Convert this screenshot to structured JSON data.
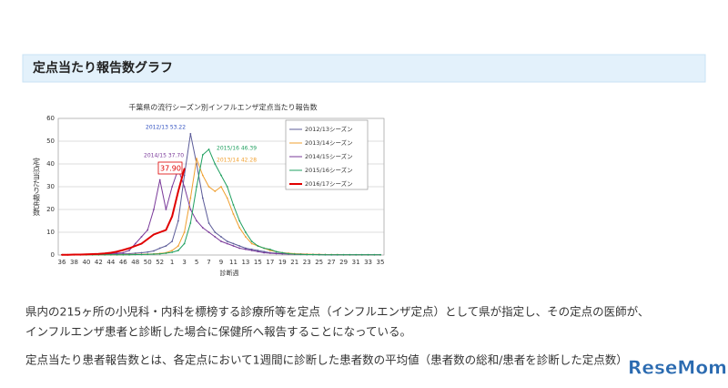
{
  "heading": "定点当たり報告数グラフ",
  "paragraphs": [
    "県内の215ヶ所の小児科・内科を標榜する診療所等を定点（インフルエンザ定点）として県が指定し、その定点の医師が、",
    "インフルエンザ患者と診断した場合に保健所へ報告することになっている。",
    "定点当たり患者報告数とは、各定点において1週間に診断した患者数の平均値（患者数の総和/患者を診断した定点数）"
  ],
  "logo": "ReseMom",
  "chart_data": {
    "type": "line",
    "title": "千葉県の流行シーズン別インフルエンザ定点当たり報告数",
    "x_label": "診断週",
    "y_label": "定点当たり報告数",
    "categories": [
      36,
      null,
      38,
      null,
      40,
      null,
      42,
      null,
      44,
      null,
      46,
      null,
      48,
      null,
      50,
      null,
      52,
      null,
      1,
      null,
      3,
      null,
      5,
      null,
      7,
      null,
      9,
      null,
      11,
      null,
      13,
      null,
      15,
      null,
      17,
      null,
      19,
      null,
      21,
      null,
      23,
      null,
      25,
      null,
      27,
      null,
      29,
      null,
      31,
      null,
      33,
      null,
      35
    ],
    "ylim": [
      0,
      60
    ],
    "yticks": [
      0,
      10,
      20,
      30,
      40,
      50,
      60
    ],
    "grid": true,
    "legend": "upper right",
    "series": [
      {
        "name": "2012/13シーズン",
        "color": "#5c5c99",
        "values": [
          0.1,
          0.1,
          0.1,
          0.1,
          0.2,
          0.2,
          0.2,
          0.3,
          0.3,
          0.4,
          0.5,
          0.6,
          0.8,
          1,
          1.3,
          1.8,
          3,
          4,
          6,
          15,
          35,
          53.22,
          40,
          25,
          14,
          10,
          8,
          6,
          5,
          4,
          3,
          2.5,
          2,
          1.5,
          1,
          0.8,
          0.6,
          0.5,
          0.4,
          0.3,
          0.3,
          0.2,
          0.2,
          0.2,
          0.1,
          0.1,
          0.1,
          0.1,
          0.1,
          0.1,
          0.1,
          0.1,
          0.1
        ]
      },
      {
        "name": "2013/14シーズン",
        "color": "#f0a030",
        "values": [
          0.1,
          0.1,
          0.1,
          0.1,
          0.1,
          0.1,
          0.1,
          0.1,
          0.1,
          0.1,
          0.2,
          0.2,
          0.3,
          0.3,
          0.4,
          0.5,
          0.7,
          1,
          2,
          4,
          10,
          25,
          42.28,
          35,
          30,
          28,
          30,
          25,
          18,
          12,
          8,
          5,
          4,
          3,
          2,
          1.5,
          1,
          0.8,
          0.6,
          0.5,
          0.4,
          0.3,
          0.3,
          0.2,
          0.2,
          0.2,
          0.1,
          0.1,
          0.1,
          0.1,
          0.1,
          0.1,
          0.1
        ]
      },
      {
        "name": "2014/15シーズン",
        "color": "#7a3a9a",
        "values": [
          0.1,
          0.1,
          0.1,
          0.1,
          0.2,
          0.2,
          0.3,
          0.4,
          0.6,
          0.8,
          1,
          2,
          5,
          8,
          11,
          20,
          33,
          20,
          30,
          37.7,
          30,
          20,
          15,
          12,
          10,
          8,
          6,
          5,
          4,
          3,
          2.5,
          2,
          1.5,
          1,
          0.8,
          0.6,
          0.5,
          0.4,
          0.3,
          0.3,
          0.2,
          0.2,
          0.2,
          0.1,
          0.1,
          0.1,
          0.1,
          0.1,
          0.1,
          0.1,
          0.1,
          0.1,
          0.1
        ]
      },
      {
        "name": "2015/16シーズン",
        "color": "#20a060",
        "values": [
          0.1,
          0.1,
          0.1,
          0.1,
          0.1,
          0.1,
          0.1,
          0.1,
          0.1,
          0.1,
          0.1,
          0.1,
          0.2,
          0.2,
          0.3,
          0.4,
          0.5,
          0.8,
          1.2,
          2,
          5,
          14,
          30,
          44,
          46.39,
          40,
          35,
          30,
          22,
          15,
          10,
          6,
          4,
          3,
          2.5,
          1.5,
          1,
          0.6,
          0.4,
          0.3,
          0.2,
          0.2,
          0.1,
          0.1,
          0.1,
          0.1,
          0.1,
          0.1,
          0.1,
          0.1,
          0.1,
          0.1,
          0.1
        ]
      },
      {
        "name": "2016/17シーズン",
        "color": "#e00000",
        "values": [
          0.1,
          0.1,
          0.2,
          0.2,
          0.3,
          0.4,
          0.5,
          0.7,
          1,
          1.5,
          2.2,
          3,
          4,
          5,
          7,
          9,
          10,
          11,
          17,
          28,
          37.9,
          null,
          null,
          null,
          null,
          null,
          null,
          null,
          null,
          null,
          null,
          null,
          null,
          null,
          null,
          null,
          null,
          null,
          null,
          null,
          null,
          null,
          null,
          null,
          null,
          null,
          null,
          null,
          null,
          null,
          null,
          null,
          null
        ]
      }
    ],
    "annotations": [
      {
        "text": "2012/13 53.22",
        "color": "#3050c0"
      },
      {
        "text": "2015/16 46.39",
        "color": "#20a060"
      },
      {
        "text": "2013/14 42.28",
        "color": "#f0a030"
      },
      {
        "text": "2014/15 37.70",
        "color": "#7a3a9a"
      },
      {
        "text": "37.90",
        "color": "#e00000"
      }
    ]
  }
}
